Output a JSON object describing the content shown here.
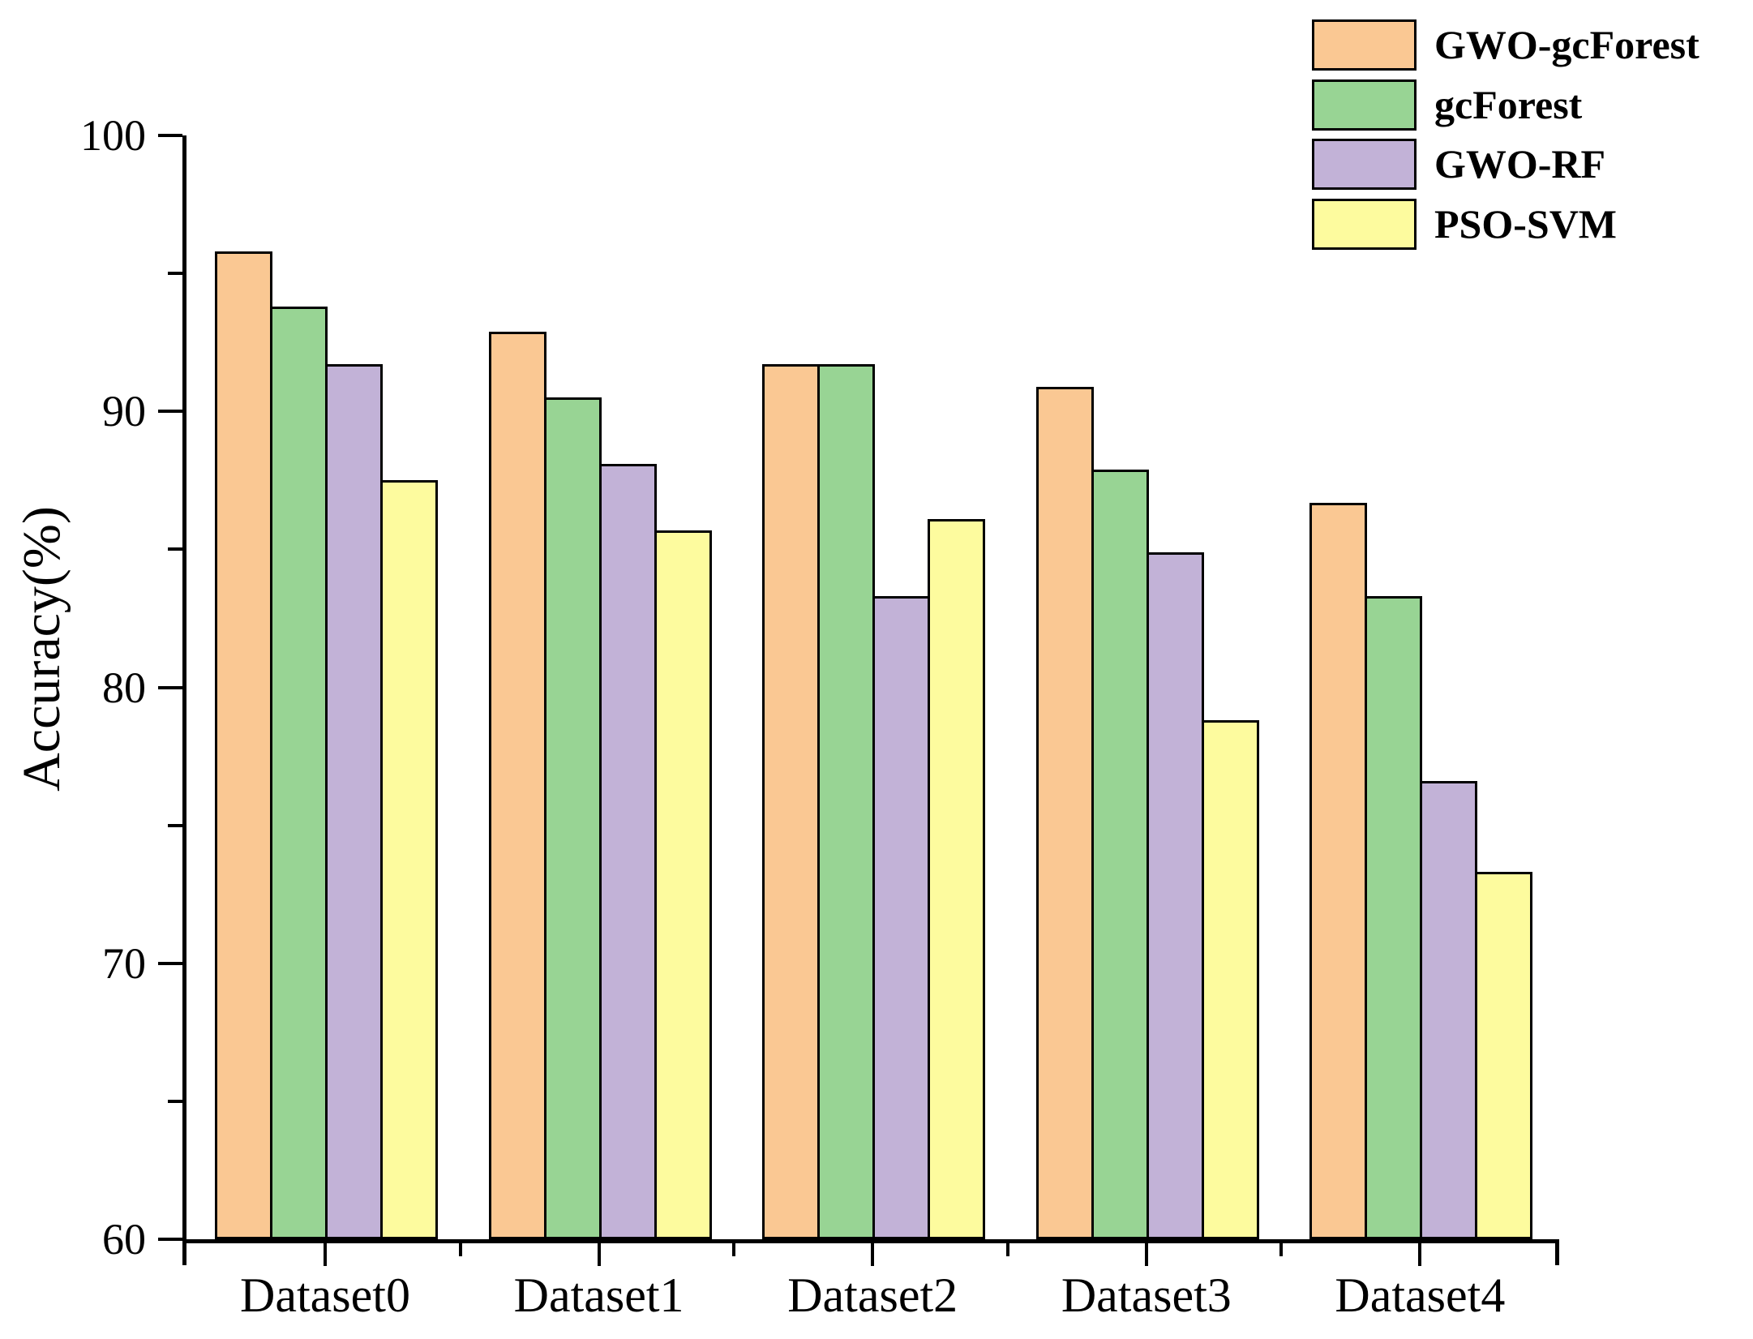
{
  "chart_data": {
    "type": "bar",
    "title": "",
    "ylabel": "Accuracy(%)",
    "xlabel": "",
    "ylim": [
      60,
      100
    ],
    "yticks_major": [
      100,
      90,
      80,
      70,
      60
    ],
    "yticks_minor": [
      95,
      85,
      75,
      65
    ],
    "categories": [
      "Dataset0",
      "Dataset1",
      "Dataset2",
      "Dataset3",
      "Dataset4"
    ],
    "series": [
      {
        "name": "GWO-gcForest",
        "color": "#FAC893",
        "values": [
          95.8,
          92.9,
          91.7,
          90.9,
          86.7
        ]
      },
      {
        "name": "gcForest",
        "color": "#98D494",
        "values": [
          93.8,
          90.5,
          91.7,
          87.9,
          83.3
        ]
      },
      {
        "name": "GWO-RF",
        "color": "#C2B2D7",
        "values": [
          91.7,
          88.1,
          83.3,
          84.9,
          76.6
        ]
      },
      {
        "name": "PSO-SVM",
        "color": "#FDFB9E",
        "values": [
          87.5,
          85.7,
          86.1,
          78.8,
          73.3
        ]
      }
    ],
    "legend_position": "top-right",
    "grid": false,
    "bar_edge_color": "#000000",
    "background": "#FFFFFF"
  }
}
